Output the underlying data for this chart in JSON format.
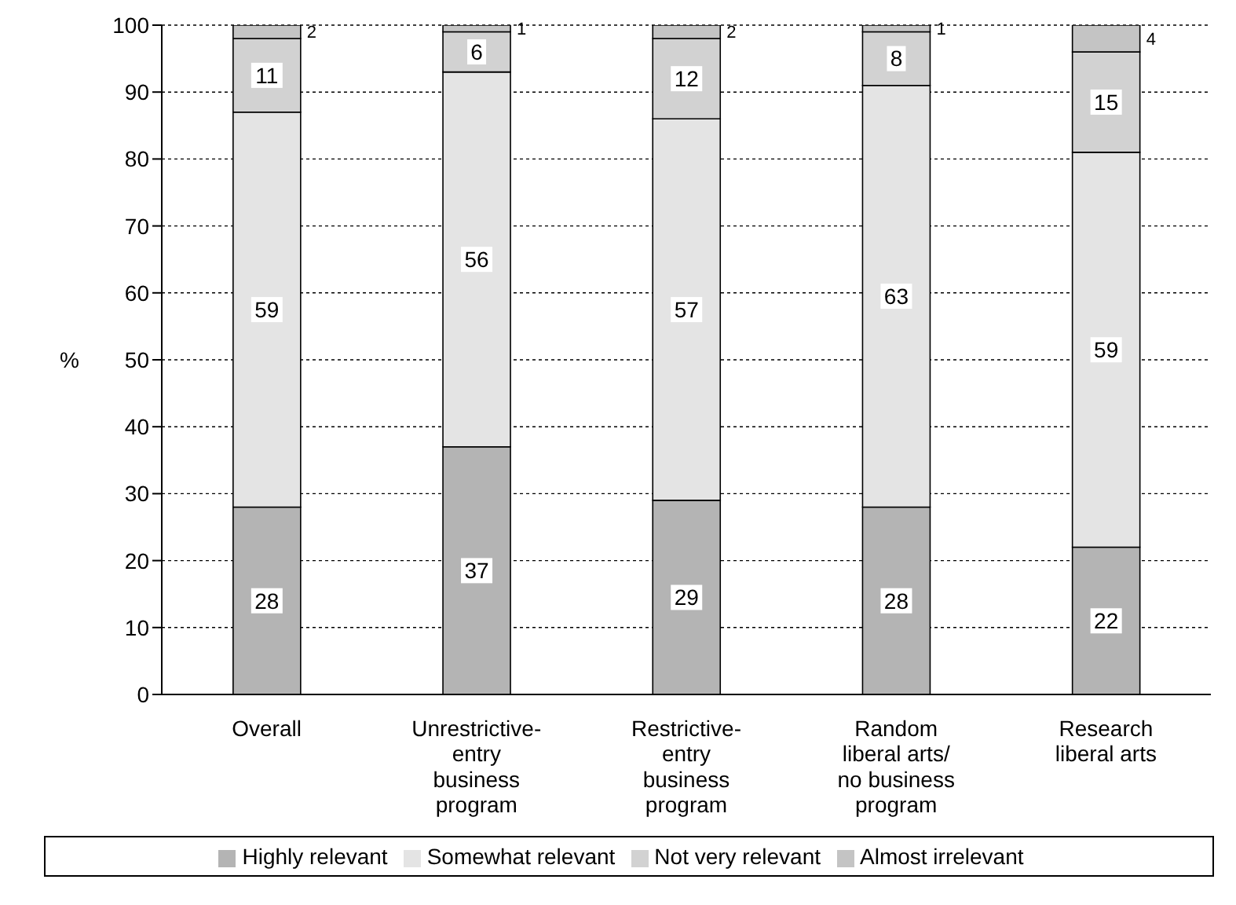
{
  "chart_data": {
    "type": "bar",
    "stacked": true,
    "ylabel": "%",
    "categories": [
      "Overall",
      "Unrestrictive-entry business program",
      "Restrictive-entry business program",
      "Random liberal arts/ no business program",
      "Research liberal arts"
    ],
    "series": [
      {
        "name": "Highly relevant",
        "color": "#b4b4b4",
        "values": [
          28,
          37,
          29,
          28,
          22
        ]
      },
      {
        "name": "Somewhat relevant",
        "color": "#e4e4e4",
        "values": [
          59,
          56,
          57,
          63,
          59
        ]
      },
      {
        "name": "Not very relevant",
        "color": "#d2d2d2",
        "values": [
          11,
          6,
          12,
          8,
          15
        ]
      },
      {
        "name": "Almost irrelevant",
        "color": "#c4c4c4",
        "values": [
          2,
          1,
          2,
          1,
          4
        ]
      }
    ],
    "ylim": [
      0,
      100
    ],
    "yticks": [
      0,
      10,
      20,
      30,
      40,
      50,
      60,
      70,
      80,
      90,
      100
    ],
    "grid": "y",
    "legend": "bottom",
    "data_labels": true
  }
}
